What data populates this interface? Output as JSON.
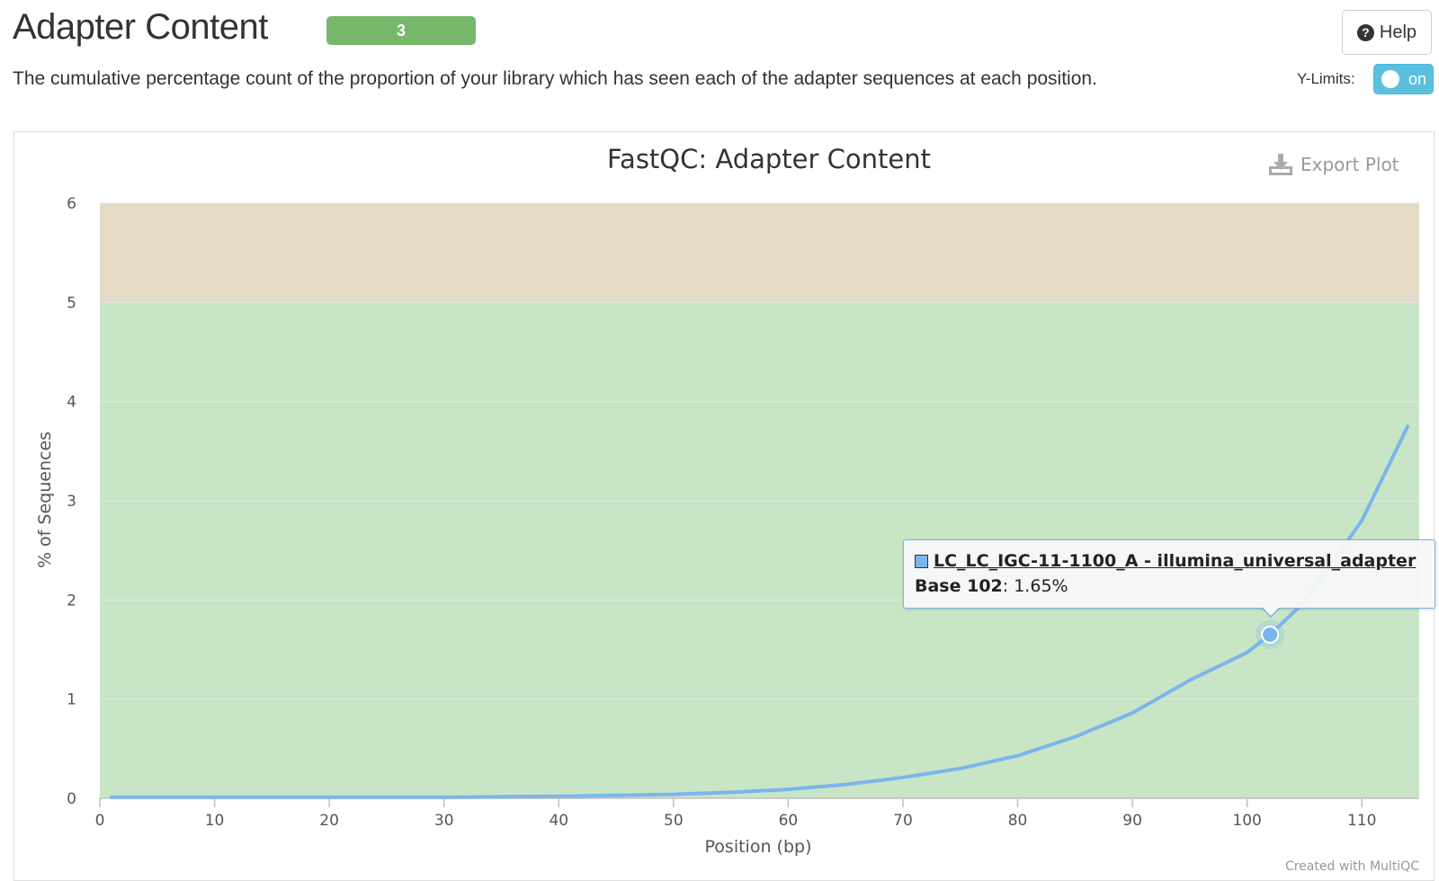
{
  "header": {
    "title": "Adapter Content",
    "badge": "3",
    "help_label": "Help",
    "description": "The cumulative percentage count of the proportion of your library which has seen each of the adapter sequences at each position."
  },
  "controls": {
    "ylimits_label": "Y-Limits:",
    "ylimits_state": "on"
  },
  "plot": {
    "export_label": "Export Plot",
    "credit": "Created with MultiQC"
  },
  "tooltip": {
    "series_name": "LC_LC_IGC-11-1100_A - illumina_universal_adapter",
    "point_label": "Base 102",
    "point_value": ": 1.65%"
  },
  "chart_data": {
    "type": "line",
    "title": "FastQC: Adapter Content",
    "xlabel": "Position (bp)",
    "ylabel": "% of Sequences",
    "xlim": [
      0,
      115
    ],
    "ylim": [
      0,
      6
    ],
    "x_ticks": [
      "0",
      "10",
      "20",
      "30",
      "40",
      "50",
      "60",
      "70",
      "80",
      "90",
      "100",
      "110"
    ],
    "y_ticks": [
      "0",
      "1",
      "2",
      "3",
      "4",
      "5",
      "6"
    ],
    "bands": [
      {
        "from": 0,
        "to": 5,
        "color": "#c8e5c6"
      },
      {
        "from": 5,
        "to": 6,
        "color": "#e4dbc6"
      }
    ],
    "line_color": "#7cb5ec",
    "series": [
      {
        "name": "LC_LC_IGC-11-1100_A - illumina_universal_adapter",
        "x": [
          1,
          10,
          20,
          30,
          40,
          45,
          50,
          55,
          60,
          65,
          70,
          75,
          80,
          85,
          90,
          95,
          100,
          102,
          105,
          110,
          114
        ],
        "values": [
          0.01,
          0.01,
          0.01,
          0.01,
          0.02,
          0.03,
          0.04,
          0.06,
          0.09,
          0.14,
          0.21,
          0.3,
          0.43,
          0.62,
          0.86,
          1.19,
          1.47,
          1.65,
          1.98,
          2.8,
          3.75
        ]
      }
    ],
    "highlight": {
      "x": 102,
      "y": 1.65
    }
  }
}
